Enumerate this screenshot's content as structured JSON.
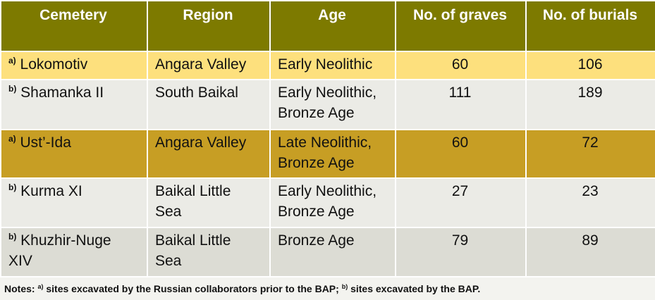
{
  "table": {
    "header": [
      "Cemetery",
      "Region",
      "Age",
      "No. of graves",
      "No. of burials"
    ],
    "rows": [
      {
        "marker": "a)",
        "cemetery": "Lokomotiv",
        "region": "Angara Valley",
        "age": "Early Neolithic",
        "graves": 60,
        "burials": 106
      },
      {
        "marker": "b)",
        "cemetery": "Shamanka II",
        "region": "South Baikal",
        "age": "Early Neolithic, Bronze Age",
        "graves": 111,
        "burials": 189
      },
      {
        "marker": "a)",
        "cemetery": "Ust’-Ida",
        "region": "Angara Valley",
        "age": "Late Neolithic, Bronze Age",
        "graves": 60,
        "burials": 72
      },
      {
        "marker": "b)",
        "cemetery": "Kurma XI",
        "region": "Baikal Little Sea",
        "age": "Early Neolithic, Bronze Age",
        "graves": 27,
        "burials": 23
      },
      {
        "marker": "b)",
        "cemetery": "Khuzhir-Nuge XIV",
        "region": "Baikal Little Sea",
        "age": "Bronze Age",
        "graves": 79,
        "burials": 89
      }
    ]
  },
  "notes": [
    "Notes:",
    "a)",
    "sites excavated by the Russian collaborators prior to the BAP;",
    "b)",
    "sites excavated by the BAP."
  ]
}
